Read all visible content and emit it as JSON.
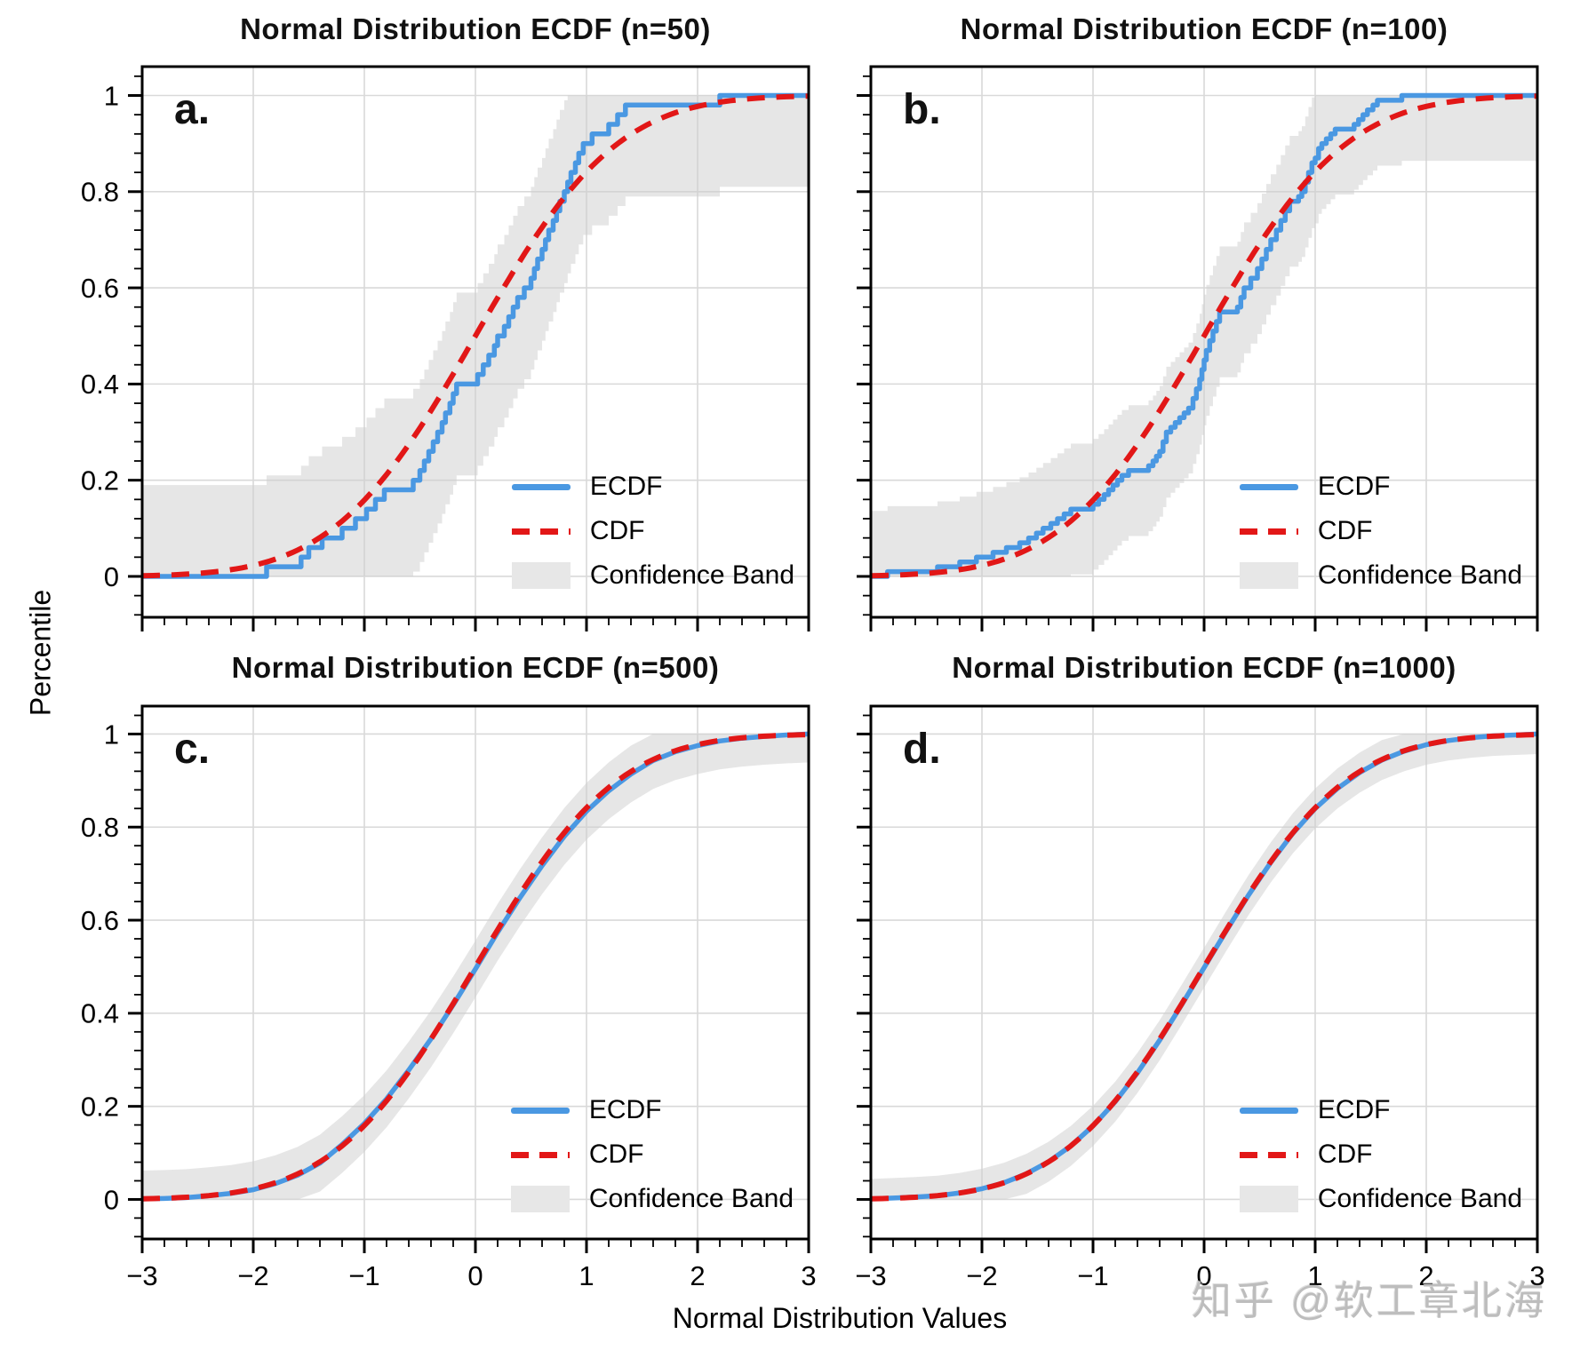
{
  "figure": {
    "watermark": "知乎 @软工章北海",
    "background": "#ffffff"
  },
  "chart_data": {
    "type": "line",
    "title": "Normal Distribution ECDF panels",
    "xlabel": "Normal Distribution Values",
    "ylabel": "Percentile",
    "xlim": [
      -3,
      3
    ],
    "ylim": [
      -0.085,
      1.06
    ],
    "grid": true,
    "axes": {
      "xticks": [
        -3,
        -2,
        -1,
        0,
        1,
        2,
        3
      ],
      "xticklabels": [
        "−3",
        "−2",
        "−1",
        "0",
        "1",
        "2",
        "3"
      ],
      "yticks": [
        0,
        0.2,
        0.4,
        0.6,
        0.8,
        1
      ],
      "yticklabels": [
        "0",
        "0.2",
        "0.4",
        "0.6",
        "0.8",
        "1"
      ],
      "x_minor_step": 0.2,
      "y_minor_step": 0.04
    },
    "colors": {
      "ecdf": "#4a98e2",
      "cdf": "#e21717",
      "band": "#e7e7e7",
      "band_fill": "rgba(205,205,205,0.5)",
      "gridline": "#d9d9d9",
      "spine": "#000000"
    },
    "legend": {
      "position": "lower right",
      "entries": [
        {
          "label": "ECDF",
          "color": "#4a98e2",
          "style": "solid"
        },
        {
          "label": "CDF",
          "color": "#e21717",
          "style": "dashed"
        },
        {
          "label": "Confidence Band",
          "color": "#e7e7e7",
          "style": "fill"
        }
      ]
    },
    "cdf": {
      "distribution": "standard normal",
      "mean": 0,
      "sd": 1
    },
    "panels": [
      {
        "label": "a.",
        "title": "Normal Distribution ECDF (n=50)",
        "n": 50,
        "confidence_eps": 0.19,
        "ecdf": [
          [
            -3,
            0
          ],
          [
            -1.88,
            0.02
          ],
          [
            -1.57,
            0.04
          ],
          [
            -1.5,
            0.06
          ],
          [
            -1.38,
            0.08
          ],
          [
            -1.2,
            0.1
          ],
          [
            -1.08,
            0.12
          ],
          [
            -0.98,
            0.14
          ],
          [
            -0.9,
            0.16
          ],
          [
            -0.82,
            0.18
          ],
          [
            -0.56,
            0.2
          ],
          [
            -0.5,
            0.22
          ],
          [
            -0.46,
            0.24
          ],
          [
            -0.42,
            0.26
          ],
          [
            -0.38,
            0.28
          ],
          [
            -0.34,
            0.3
          ],
          [
            -0.3,
            0.32
          ],
          [
            -0.27,
            0.34
          ],
          [
            -0.23,
            0.36
          ],
          [
            -0.2,
            0.38
          ],
          [
            -0.17,
            0.4
          ],
          [
            0.02,
            0.42
          ],
          [
            0.07,
            0.44
          ],
          [
            0.12,
            0.46
          ],
          [
            0.17,
            0.48
          ],
          [
            0.2,
            0.5
          ],
          [
            0.26,
            0.52
          ],
          [
            0.3,
            0.54
          ],
          [
            0.34,
            0.56
          ],
          [
            0.38,
            0.58
          ],
          [
            0.44,
            0.6
          ],
          [
            0.5,
            0.62
          ],
          [
            0.53,
            0.64
          ],
          [
            0.56,
            0.66
          ],
          [
            0.6,
            0.68
          ],
          [
            0.63,
            0.7
          ],
          [
            0.66,
            0.72
          ],
          [
            0.7,
            0.74
          ],
          [
            0.73,
            0.76
          ],
          [
            0.76,
            0.78
          ],
          [
            0.8,
            0.8
          ],
          [
            0.83,
            0.82
          ],
          [
            0.86,
            0.84
          ],
          [
            0.9,
            0.86
          ],
          [
            0.93,
            0.88
          ],
          [
            0.97,
            0.9
          ],
          [
            1.05,
            0.92
          ],
          [
            1.2,
            0.94
          ],
          [
            1.28,
            0.96
          ],
          [
            1.35,
            0.98
          ],
          [
            2.2,
            1
          ],
          [
            3,
            1
          ]
        ]
      },
      {
        "label": "b.",
        "title": "Normal Distribution ECDF (n=100)",
        "n": 100,
        "confidence_eps": 0.136,
        "ecdf": [
          [
            -3,
            0
          ],
          [
            -2.85,
            0.01
          ],
          [
            -2.4,
            0.02
          ],
          [
            -2.2,
            0.03
          ],
          [
            -2.05,
            0.04
          ],
          [
            -1.9,
            0.05
          ],
          [
            -1.78,
            0.06
          ],
          [
            -1.66,
            0.07
          ],
          [
            -1.58,
            0.08
          ],
          [
            -1.51,
            0.09
          ],
          [
            -1.45,
            0.1
          ],
          [
            -1.38,
            0.11
          ],
          [
            -1.32,
            0.12
          ],
          [
            -1.26,
            0.13
          ],
          [
            -1.2,
            0.14
          ],
          [
            -1,
            0.15
          ],
          [
            -0.95,
            0.16
          ],
          [
            -0.9,
            0.17
          ],
          [
            -0.86,
            0.18
          ],
          [
            -0.82,
            0.19
          ],
          [
            -0.78,
            0.2
          ],
          [
            -0.74,
            0.21
          ],
          [
            -0.68,
            0.22
          ],
          [
            -0.5,
            0.23
          ],
          [
            -0.46,
            0.24
          ],
          [
            -0.43,
            0.25
          ],
          [
            -0.4,
            0.26
          ],
          [
            -0.37,
            0.28
          ],
          [
            -0.34,
            0.3
          ],
          [
            -0.3,
            0.31
          ],
          [
            -0.26,
            0.32
          ],
          [
            -0.22,
            0.33
          ],
          [
            -0.18,
            0.34
          ],
          [
            -0.14,
            0.35
          ],
          [
            -0.1,
            0.37
          ],
          [
            -0.07,
            0.39
          ],
          [
            -0.04,
            0.41
          ],
          [
            -0.02,
            0.43
          ],
          [
            0,
            0.45
          ],
          [
            0.02,
            0.47
          ],
          [
            0.05,
            0.49
          ],
          [
            0.08,
            0.51
          ],
          [
            0.11,
            0.53
          ],
          [
            0.14,
            0.55
          ],
          [
            0.3,
            0.56
          ],
          [
            0.33,
            0.58
          ],
          [
            0.36,
            0.6
          ],
          [
            0.42,
            0.62
          ],
          [
            0.48,
            0.64
          ],
          [
            0.52,
            0.66
          ],
          [
            0.56,
            0.68
          ],
          [
            0.6,
            0.7
          ],
          [
            0.65,
            0.72
          ],
          [
            0.69,
            0.74
          ],
          [
            0.73,
            0.76
          ],
          [
            0.77,
            0.78
          ],
          [
            0.85,
            0.79
          ],
          [
            0.88,
            0.8
          ],
          [
            0.91,
            0.82
          ],
          [
            0.94,
            0.84
          ],
          [
            0.97,
            0.86
          ],
          [
            1,
            0.87
          ],
          [
            1.03,
            0.89
          ],
          [
            1.06,
            0.9
          ],
          [
            1.1,
            0.91
          ],
          [
            1.14,
            0.92
          ],
          [
            1.18,
            0.93
          ],
          [
            1.35,
            0.94
          ],
          [
            1.39,
            0.95
          ],
          [
            1.43,
            0.96
          ],
          [
            1.47,
            0.97
          ],
          [
            1.52,
            0.98
          ],
          [
            1.56,
            0.99
          ],
          [
            1.78,
            1
          ],
          [
            3,
            1
          ]
        ]
      },
      {
        "label": "c.",
        "title": "Normal Distribution ECDF (n=500)",
        "n": 500,
        "confidence_eps": 0.061,
        "ecdf": [
          [
            -3,
            0.001
          ],
          [
            -2.8,
            0.002
          ],
          [
            -2.6,
            0.004
          ],
          [
            -2.4,
            0.008
          ],
          [
            -2.2,
            0.013
          ],
          [
            -2,
            0.021
          ],
          [
            -1.8,
            0.034
          ],
          [
            -1.6,
            0.052
          ],
          [
            -1.4,
            0.078
          ],
          [
            -1.2,
            0.118
          ],
          [
            -1,
            0.163
          ],
          [
            -0.8,
            0.216
          ],
          [
            -0.6,
            0.278
          ],
          [
            -0.4,
            0.345
          ],
          [
            -0.2,
            0.418
          ],
          [
            0,
            0.495
          ],
          [
            0.2,
            0.574
          ],
          [
            0.4,
            0.648
          ],
          [
            0.6,
            0.717
          ],
          [
            0.8,
            0.78
          ],
          [
            1,
            0.834
          ],
          [
            1.2,
            0.878
          ],
          [
            1.4,
            0.914
          ],
          [
            1.6,
            0.943
          ],
          [
            1.8,
            0.962
          ],
          [
            2,
            0.975
          ],
          [
            2.2,
            0.985
          ],
          [
            2.4,
            0.991
          ],
          [
            2.6,
            0.995
          ],
          [
            2.8,
            0.998
          ],
          [
            3,
            1
          ]
        ]
      },
      {
        "label": "d.",
        "title": "Normal Distribution ECDF (n=1000)",
        "n": 1000,
        "confidence_eps": 0.043,
        "ecdf": [
          [
            -3,
            0.001
          ],
          [
            -2.8,
            0.003
          ],
          [
            -2.6,
            0.005
          ],
          [
            -2.4,
            0.008
          ],
          [
            -2.2,
            0.014
          ],
          [
            -2,
            0.023
          ],
          [
            -1.8,
            0.036
          ],
          [
            -1.6,
            0.055
          ],
          [
            -1.4,
            0.081
          ],
          [
            -1.2,
            0.115
          ],
          [
            -1,
            0.158
          ],
          [
            -0.8,
            0.21
          ],
          [
            -0.6,
            0.272
          ],
          [
            -0.4,
            0.342
          ],
          [
            -0.2,
            0.419
          ],
          [
            0,
            0.498
          ],
          [
            0.2,
            0.577
          ],
          [
            0.4,
            0.654
          ],
          [
            0.6,
            0.724
          ],
          [
            0.8,
            0.787
          ],
          [
            1,
            0.84
          ],
          [
            1.2,
            0.883
          ],
          [
            1.4,
            0.917
          ],
          [
            1.6,
            0.944
          ],
          [
            1.8,
            0.963
          ],
          [
            2,
            0.977
          ],
          [
            2.2,
            0.986
          ],
          [
            2.4,
            0.992
          ],
          [
            2.6,
            0.996
          ],
          [
            2.8,
            0.998
          ],
          [
            3,
            1
          ]
        ]
      }
    ]
  }
}
